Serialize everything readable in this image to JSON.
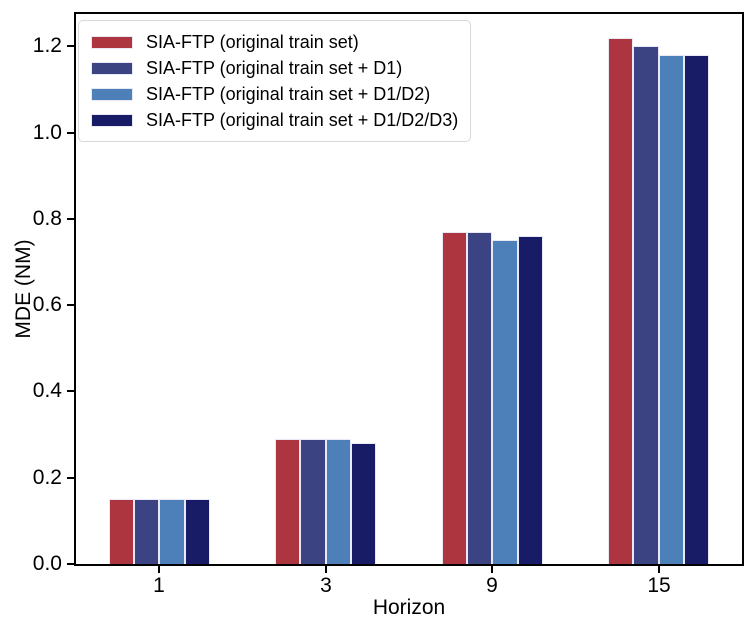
{
  "chart_data": {
    "type": "bar",
    "title": "",
    "xlabel": "Horizon",
    "ylabel": "MDE (NM)",
    "categories": [
      "1",
      "3",
      "9",
      "15"
    ],
    "series": [
      {
        "name": "SIA-FTP (original train set)",
        "color": "#ad3540",
        "values": [
          0.15,
          0.29,
          0.77,
          1.22
        ]
      },
      {
        "name": "SIA-FTP (original train set + D1)",
        "color": "#3b4382",
        "values": [
          0.15,
          0.29,
          0.77,
          1.2
        ]
      },
      {
        "name": "SIA-FTP (original train set + D1/D2)",
        "color": "#4d80b9",
        "values": [
          0.15,
          0.29,
          0.75,
          1.18
        ]
      },
      {
        "name": "SIA-FTP (original train set + D1/D2/D3)",
        "color": "#181b66",
        "values": [
          0.15,
          0.28,
          0.76,
          1.18
        ]
      }
    ],
    "yticks": [
      0.0,
      0.2,
      0.4,
      0.6,
      0.8,
      1.0,
      1.2
    ],
    "ylim": [
      0,
      1.275
    ],
    "grid": false,
    "legend_position": "upper left",
    "bar_edge_color": "#e9e9f5",
    "spine_color": "#000000",
    "text_color": "#000000",
    "background_color": "#ffffff"
  }
}
